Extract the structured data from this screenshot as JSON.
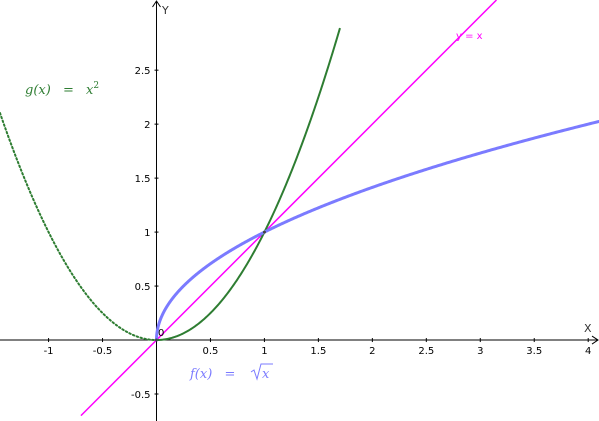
{
  "chart_data": {
    "type": "line",
    "xlabel": "X",
    "ylabel": "Y",
    "origin_label": "0",
    "xlim": [
      -1.45,
      4.1
    ],
    "ylim": [
      -0.75,
      3.15
    ],
    "x_ticks": [
      -1,
      -0.5,
      0.5,
      1,
      1.5,
      2,
      2.5,
      3,
      3.5,
      4
    ],
    "y_ticks": [
      -0.5,
      0.5,
      1,
      1.5,
      2,
      2.5
    ],
    "grid": false,
    "series": [
      {
        "name": "f(x) = √x",
        "label_parts": {
          "lhs": "f(x)",
          "eq": "=",
          "radicand": "x"
        },
        "function": "sqrt",
        "domain": [
          0,
          4.1
        ],
        "color": "#7b7bff",
        "style": "solid",
        "x": [
          0,
          0.25,
          0.5,
          1,
          1.5,
          2,
          2.5,
          3,
          3.5,
          4
        ],
        "y": [
          0,
          0.5,
          0.707,
          1,
          1.225,
          1.414,
          1.581,
          1.732,
          1.871,
          2
        ]
      },
      {
        "name": "g(x) = x²",
        "label_parts": {
          "lhs": "g(x)",
          "eq": "=",
          "base": "x",
          "exp": "2"
        },
        "function": "square",
        "domain": [
          -1.45,
          1.7
        ],
        "color": "#2e7d32",
        "style": "dotted-left / solid-right",
        "x": [
          -1.4,
          -1,
          -0.5,
          0,
          0.5,
          1,
          1.5,
          1.7
        ],
        "y": [
          1.96,
          1,
          0.25,
          0,
          0.25,
          1,
          2.25,
          2.89
        ]
      },
      {
        "name": "y = x",
        "function": "identity",
        "domain": [
          -0.7,
          3.15
        ],
        "color": "#ff00ff",
        "style": "solid",
        "x": [
          -0.7,
          0,
          1,
          2,
          3
        ],
        "y": [
          -0.7,
          0,
          1,
          2,
          3
        ]
      }
    ]
  }
}
